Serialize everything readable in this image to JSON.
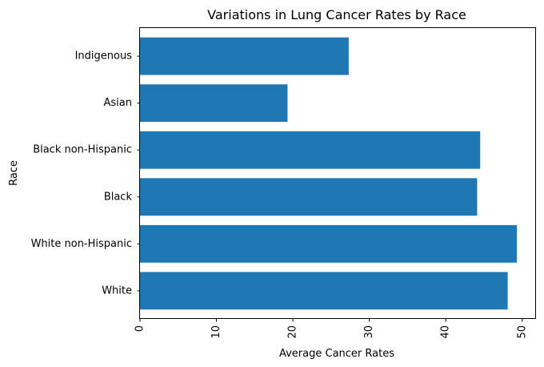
{
  "chart_data": {
    "type": "bar",
    "orientation": "horizontal",
    "title": "Variations in Lung Cancer Rates by Race",
    "xlabel": "Average Cancer Rates",
    "ylabel": "Race",
    "categories": [
      "White",
      "White non-Hispanic",
      "Black",
      "Black non-Hispanic",
      "Asian",
      "Indigenous"
    ],
    "values": [
      48.1,
      49.3,
      44.1,
      44.5,
      19.3,
      27.3
    ],
    "xlim": [
      0,
      51.8
    ],
    "xticks": [
      "0",
      "10",
      "20",
      "30",
      "40",
      "50"
    ],
    "xtick_rotation": 90,
    "grid": false,
    "colors": {
      "bar": "#1f77b4"
    }
  }
}
